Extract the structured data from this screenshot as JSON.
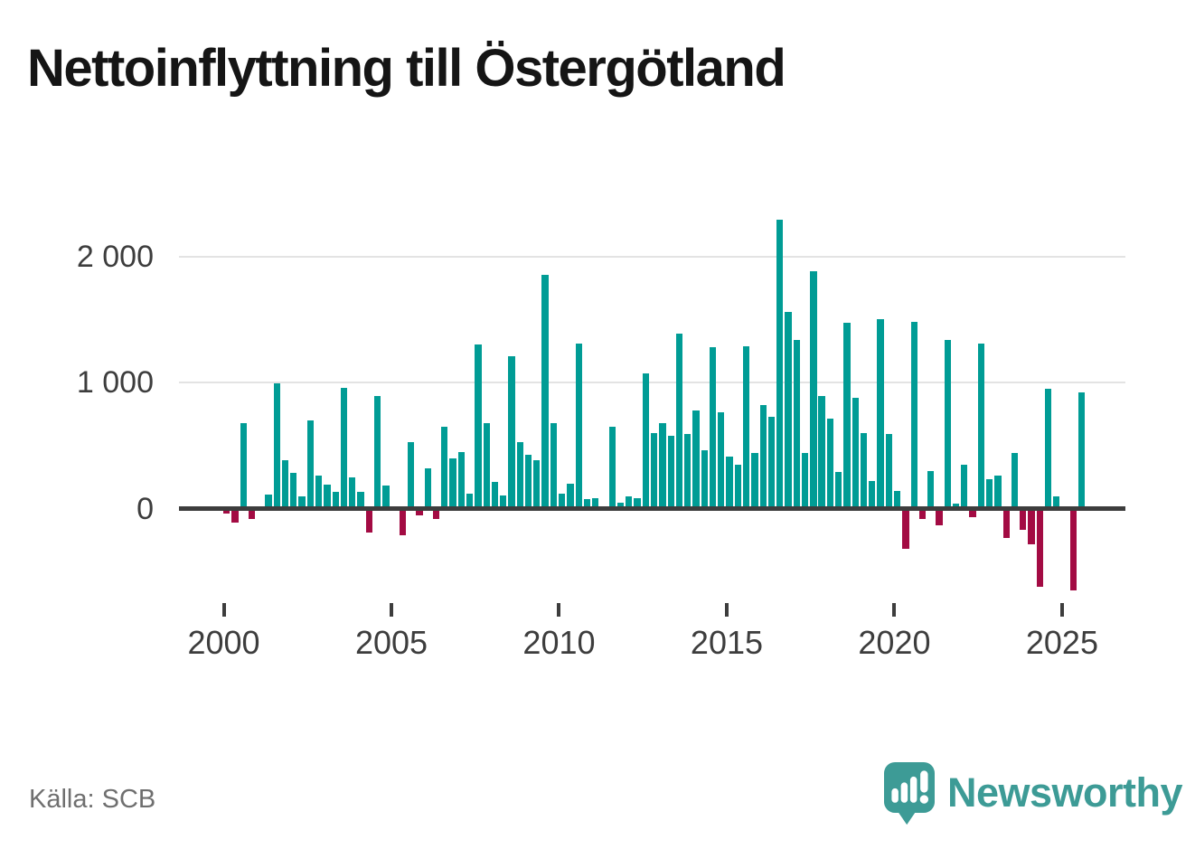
{
  "title": "Nettoinflyttning till Östergötland",
  "source": "Källa: SCB",
  "branding": {
    "logo_text": "Newsworthy",
    "logo_icon": "speech-bubble-with-bar-chart-and-exclamation"
  },
  "colors": {
    "positive_bar": "#009c95",
    "negative_bar": "#a30b43",
    "brand_teal": "#3d9b96",
    "axis": "#3d3d3d",
    "gridline": "#e3e3e3",
    "source_text": "#6f6f6f",
    "title_text": "#151515"
  },
  "chart_data": {
    "type": "bar",
    "title": "Nettoinflyttning till Östergötland",
    "xlabel": "",
    "ylabel": "",
    "x_tick_labels": [
      "2000",
      "2005",
      "2010",
      "2015",
      "2020",
      "2025"
    ],
    "x_tick_years": [
      2000,
      2005,
      2010,
      2015,
      2020,
      2025
    ],
    "y_tick_labels": [
      "2 000",
      "1 000",
      "0"
    ],
    "y_tick_values": [
      2000,
      1000,
      0
    ],
    "ylim": [
      -700,
      2400
    ],
    "grid": "horizontal",
    "legend": "none",
    "period_start": "2000-Q1",
    "period_end": "2025-Q3",
    "periods": [
      "2000-Q1",
      "2000-Q2",
      "2000-Q3",
      "2000-Q4",
      "2001-Q1",
      "2001-Q2",
      "2001-Q3",
      "2001-Q4",
      "2002-Q1",
      "2002-Q2",
      "2002-Q3",
      "2002-Q4",
      "2003-Q1",
      "2003-Q2",
      "2003-Q3",
      "2003-Q4",
      "2004-Q1",
      "2004-Q2",
      "2004-Q3",
      "2004-Q4",
      "2005-Q1",
      "2005-Q2",
      "2005-Q3",
      "2005-Q4",
      "2006-Q1",
      "2006-Q2",
      "2006-Q3",
      "2006-Q4",
      "2007-Q1",
      "2007-Q2",
      "2007-Q3",
      "2007-Q4",
      "2008-Q1",
      "2008-Q2",
      "2008-Q3",
      "2008-Q4",
      "2009-Q1",
      "2009-Q2",
      "2009-Q3",
      "2009-Q4",
      "2010-Q1",
      "2010-Q2",
      "2010-Q3",
      "2010-Q4",
      "2011-Q1",
      "2011-Q2",
      "2011-Q3",
      "2011-Q4",
      "2012-Q1",
      "2012-Q2",
      "2012-Q3",
      "2012-Q4",
      "2013-Q1",
      "2013-Q2",
      "2013-Q3",
      "2013-Q4",
      "2014-Q1",
      "2014-Q2",
      "2014-Q3",
      "2014-Q4",
      "2015-Q1",
      "2015-Q2",
      "2015-Q3",
      "2015-Q4",
      "2016-Q1",
      "2016-Q2",
      "2016-Q3",
      "2016-Q4",
      "2017-Q1",
      "2017-Q2",
      "2017-Q3",
      "2017-Q4",
      "2018-Q1",
      "2018-Q2",
      "2018-Q3",
      "2018-Q4",
      "2019-Q1",
      "2019-Q2",
      "2019-Q3",
      "2019-Q4",
      "2020-Q1",
      "2020-Q2",
      "2020-Q3",
      "2020-Q4",
      "2021-Q1",
      "2021-Q2",
      "2021-Q3",
      "2021-Q4",
      "2022-Q1",
      "2022-Q2",
      "2022-Q3",
      "2022-Q4",
      "2023-Q1",
      "2023-Q2",
      "2023-Q3",
      "2023-Q4",
      "2024-Q1",
      "2024-Q2",
      "2024-Q3",
      "2024-Q4",
      "2025-Q1",
      "2025-Q2",
      "2025-Q3"
    ],
    "values": [
      -40,
      -110,
      680,
      -80,
      -20,
      110,
      990,
      380,
      280,
      100,
      700,
      260,
      190,
      130,
      960,
      250,
      130,
      -190,
      890,
      180,
      0,
      -215,
      530,
      -55,
      320,
      -80,
      650,
      400,
      450,
      115,
      1300,
      680,
      210,
      105,
      1210,
      530,
      430,
      380,
      1850,
      680,
      120,
      200,
      1310,
      75,
      85,
      10,
      650,
      45,
      100,
      85,
      1070,
      600,
      680,
      580,
      1390,
      590,
      780,
      460,
      1280,
      760,
      410,
      350,
      1290,
      440,
      820,
      730,
      2290,
      1560,
      1340,
      440,
      1880,
      890,
      710,
      290,
      1470,
      880,
      600,
      220,
      1500,
      590,
      140,
      -320,
      1480,
      -85,
      300,
      -130,
      1340,
      40,
      350,
      -70,
      1310,
      230,
      260,
      -230,
      440,
      -170,
      -280,
      -620,
      950,
      100,
      20,
      -650,
      920
    ]
  }
}
